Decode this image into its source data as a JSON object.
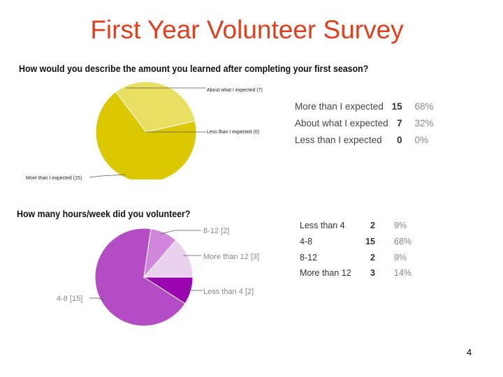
{
  "title": "First Year Volunteer Survey",
  "page_number": "4",
  "chart_data": [
    {
      "type": "pie",
      "title": "How would you describe the amount you learned after completing your first season?",
      "categories": [
        "More than I expected",
        "About what I expected",
        "Less than I expected"
      ],
      "values": [
        15,
        7,
        0
      ],
      "percents": [
        "68%",
        "32%",
        "0%"
      ],
      "colors": [
        "#dcc800",
        "#e8df63",
        "#f0ea9e"
      ],
      "slice_labels": [
        "More than I expected (15)",
        "About what I expected (7)",
        "Less than I expected (0)"
      ]
    },
    {
      "type": "pie",
      "title": "How many hours/week did you volunteer?",
      "categories": [
        "Less than 4",
        "4-8",
        "8-12",
        "More than 12"
      ],
      "values": [
        2,
        15,
        2,
        3
      ],
      "percents": [
        "9%",
        "68%",
        "9%",
        "14%"
      ],
      "colors": [
        "#9a05b0",
        "#b44cc6",
        "#cf86db",
        "#ead1f0"
      ],
      "slice_labels": [
        "Less than 4 [2]",
        "4-8 [15]",
        "8-12 [2]",
        "More than 12 [3]"
      ]
    }
  ]
}
